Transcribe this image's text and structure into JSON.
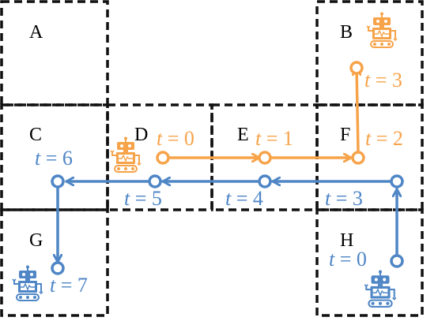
{
  "colors": {
    "orange": "#F7A34A",
    "blue": "#4F86C6",
    "grid": "#111111"
  },
  "cells": [
    {
      "id": "cell-a",
      "label": "A"
    },
    {
      "id": "cell-b",
      "label": "B"
    },
    {
      "id": "cell-c",
      "label": "C"
    },
    {
      "id": "cell-d",
      "label": "D"
    },
    {
      "id": "cell-e",
      "label": "E"
    },
    {
      "id": "cell-f",
      "label": "F"
    },
    {
      "id": "cell-g",
      "label": "G"
    },
    {
      "id": "cell-h",
      "label": "H"
    }
  ],
  "orange_path": {
    "times": [
      {
        "var": "t",
        "eq": " = ",
        "val": "0"
      },
      {
        "var": "t",
        "eq": " = ",
        "val": "1"
      },
      {
        "var": "t",
        "eq": " = ",
        "val": "2"
      },
      {
        "var": "t",
        "eq": " = ",
        "val": "3"
      }
    ]
  },
  "blue_path": {
    "times": [
      {
        "var": "t",
        "eq": " = ",
        "val": "0"
      },
      {
        "var": "t",
        "eq": " = ",
        "val": "3"
      },
      {
        "var": "t",
        "eq": " = ",
        "val": "4"
      },
      {
        "var": "t",
        "eq": " = ",
        "val": "5"
      },
      {
        "var": "t",
        "eq": " = ",
        "val": "6"
      },
      {
        "var": "t",
        "eq": " = ",
        "val": "7"
      }
    ]
  },
  "icons": [
    "robot-icon-orange-b",
    "robot-icon-orange-d",
    "robot-icon-blue-h",
    "robot-icon-blue-g"
  ]
}
